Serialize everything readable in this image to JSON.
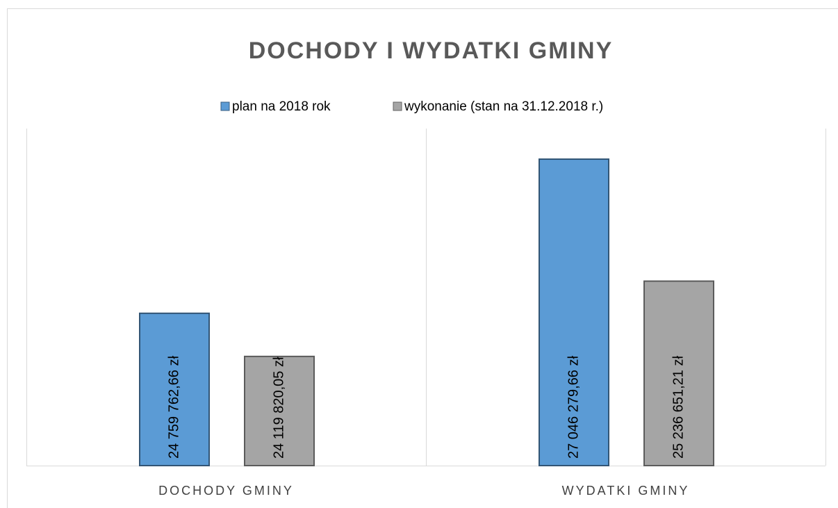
{
  "chart_data": {
    "type": "bar",
    "title": "DOCHODY I WYDATKI GMINY",
    "categories": [
      "DOCHODY GMINY",
      "WYDATKI GMINY"
    ],
    "series": [
      {
        "name": "plan na 2018 rok",
        "color": "#5b9bd5",
        "values": [
          24759762.66,
          27046279.66
        ],
        "value_labels": [
          "24 759 762,66 zł",
          "27 046 279,66 zł"
        ]
      },
      {
        "name": "wykonanie (stan na 31.12.2018 r.)",
        "color": "#a5a5a5",
        "values": [
          24119820.05,
          25236651.21
        ],
        "value_labels": [
          "24 119 820,05 zł",
          "25 236 651,21 zł"
        ]
      }
    ],
    "ylim": [
      22500000,
      27500000
    ]
  }
}
